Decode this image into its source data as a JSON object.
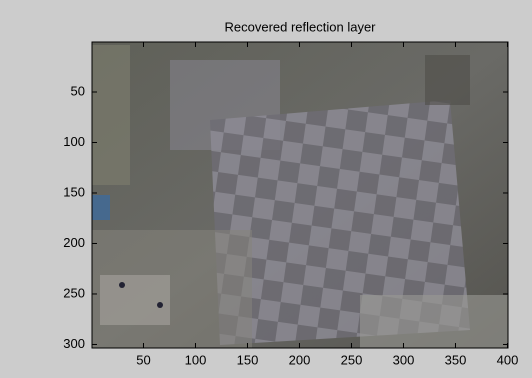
{
  "chart_data": {
    "type": "image",
    "title": "Recovered reflection layer",
    "xlim": [
      0.5,
      400.5
    ],
    "ylim": [
      0.5,
      303.5
    ],
    "y_reversed": true,
    "xticks": [
      50,
      100,
      150,
      200,
      250,
      300,
      350,
      400
    ],
    "yticks": [
      50,
      100,
      150,
      200,
      250,
      300
    ]
  }
}
